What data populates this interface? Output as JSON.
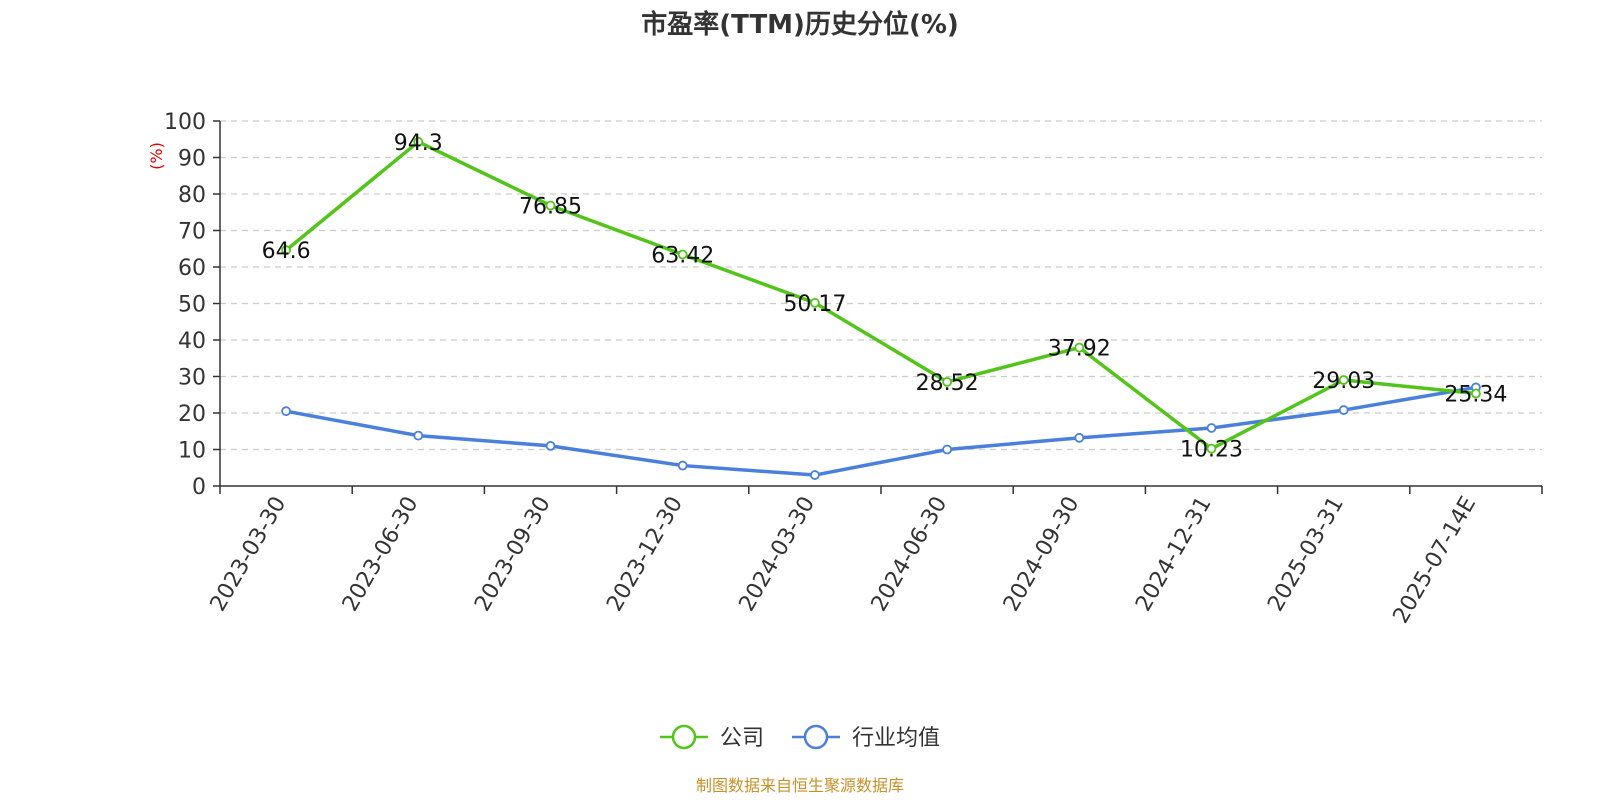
{
  "chart_data": {
    "type": "line",
    "title": "市盈率(TTM)历史分位(%)",
    "ylabel": "(%)",
    "xlabel": "",
    "ylim": [
      0,
      100
    ],
    "yticks": [
      0,
      10,
      20,
      30,
      40,
      50,
      60,
      70,
      80,
      90,
      100
    ],
    "grid": true,
    "legend_position": "bottom-center",
    "categories": [
      "2023-03-30",
      "2023-06-30",
      "2023-09-30",
      "2023-12-30",
      "2024-03-30",
      "2024-06-30",
      "2024-09-30",
      "2024-12-31",
      "2025-03-31",
      "2025-07-14E"
    ],
    "series": [
      {
        "name": "公司",
        "color": "#52c41a",
        "values": [
          64.6,
          94.3,
          76.85,
          63.42,
          50.17,
          28.52,
          37.92,
          10.23,
          29.03,
          25.34
        ],
        "labels": [
          "64.6",
          "94.3",
          "76.85",
          "63.42",
          "50.17",
          "28.52",
          "37.92",
          "10.23",
          "29.03",
          "25.34"
        ],
        "show_labels": true
      },
      {
        "name": "行业均值",
        "color": "#4a7fdc",
        "values": [
          20.5,
          13.8,
          11.0,
          5.6,
          3.0,
          10.0,
          13.2,
          15.9,
          20.8,
          27.0
        ],
        "show_labels": false
      }
    ]
  },
  "source": "制图数据来自恒生聚源数据库"
}
